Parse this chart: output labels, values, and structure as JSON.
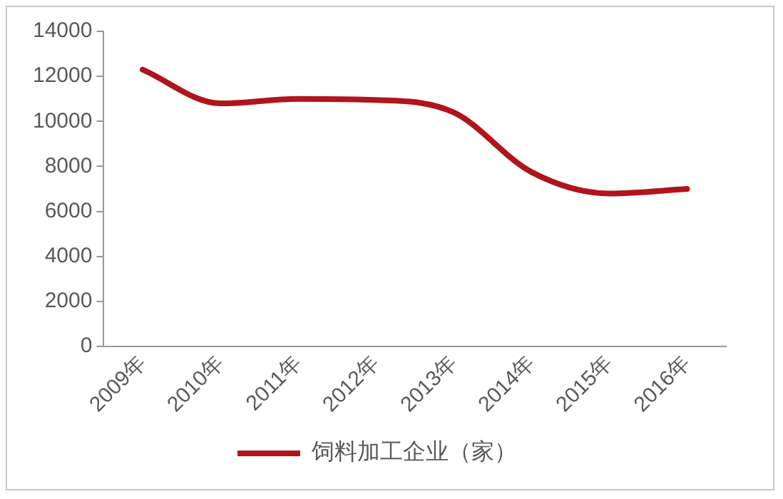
{
  "chart_data": {
    "type": "line",
    "categories": [
      "2009年",
      "2010年",
      "2011年",
      "2012年",
      "2013年",
      "2014年",
      "2015年",
      "2016年"
    ],
    "series": [
      {
        "name": "饲料加工企业（家）",
        "color": "#b0141c",
        "values": [
          12300,
          10800,
          11000,
          10950,
          10400,
          7750,
          6800,
          7000
        ]
      }
    ],
    "ylim": [
      0,
      14000
    ],
    "yticks": [
      0,
      2000,
      4000,
      6000,
      8000,
      10000,
      12000,
      14000
    ],
    "grid": false,
    "legend": "bottom",
    "marker": "none",
    "line_style": "solid"
  }
}
